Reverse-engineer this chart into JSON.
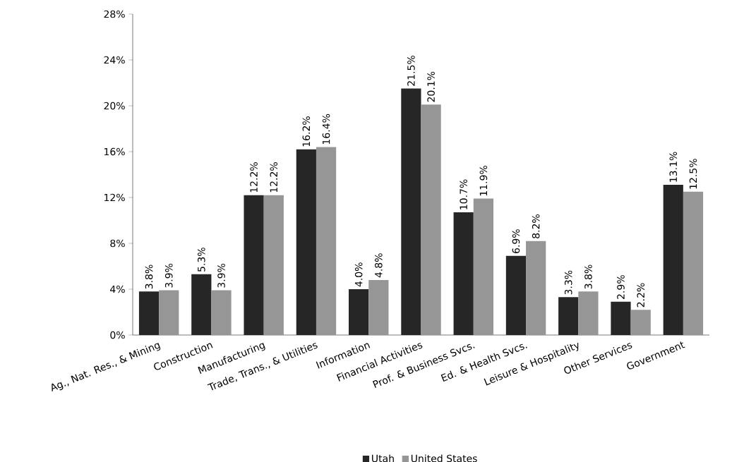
{
  "chart_data": {
    "type": "bar",
    "categories": [
      "Ag., Nat. Res., & Mining",
      "Construction",
      "Manufacturing",
      "Trade, Trans., & Utilities",
      "Information",
      "Financial Activities",
      "Prof. & Business Svcs.",
      "Ed. & Health Svcs.",
      "Leisure & Hospitality",
      "Other Services",
      "Government"
    ],
    "series": [
      {
        "name": "Utah",
        "color": "#262626",
        "values": [
          3.8,
          5.3,
          12.2,
          16.2,
          4.0,
          21.5,
          10.7,
          6.9,
          3.3,
          2.9,
          13.1
        ],
        "value_labels": [
          "3.8%",
          "5.3%",
          "12.2%",
          "16.2%",
          "4.0%",
          "21.5%",
          "10.7%",
          "6.9%",
          "3.3%",
          "2.9%",
          "13.1%"
        ]
      },
      {
        "name": "United States",
        "color": "#969696",
        "values": [
          3.9,
          3.9,
          12.2,
          16.4,
          4.8,
          20.1,
          11.9,
          8.2,
          3.8,
          2.2,
          12.5
        ],
        "value_labels": [
          "3.9%",
          "3.9%",
          "12.2%",
          "16.4%",
          "4.8%",
          "20.1%",
          "11.9%",
          "8.2%",
          "3.8%",
          "2.2%",
          "12.5%"
        ]
      }
    ],
    "ylim": [
      0,
      28
    ],
    "yticks": [
      {
        "value": 0,
        "label": "0%"
      },
      {
        "value": 4,
        "label": "4%"
      },
      {
        "value": 8,
        "label": "8%"
      },
      {
        "value": 12,
        "label": "12%"
      },
      {
        "value": 16,
        "label": "16%"
      },
      {
        "value": 20,
        "label": "20%"
      },
      {
        "value": 24,
        "label": "24%"
      },
      {
        "value": 28,
        "label": "28%"
      }
    ],
    "legend": "bottom"
  }
}
